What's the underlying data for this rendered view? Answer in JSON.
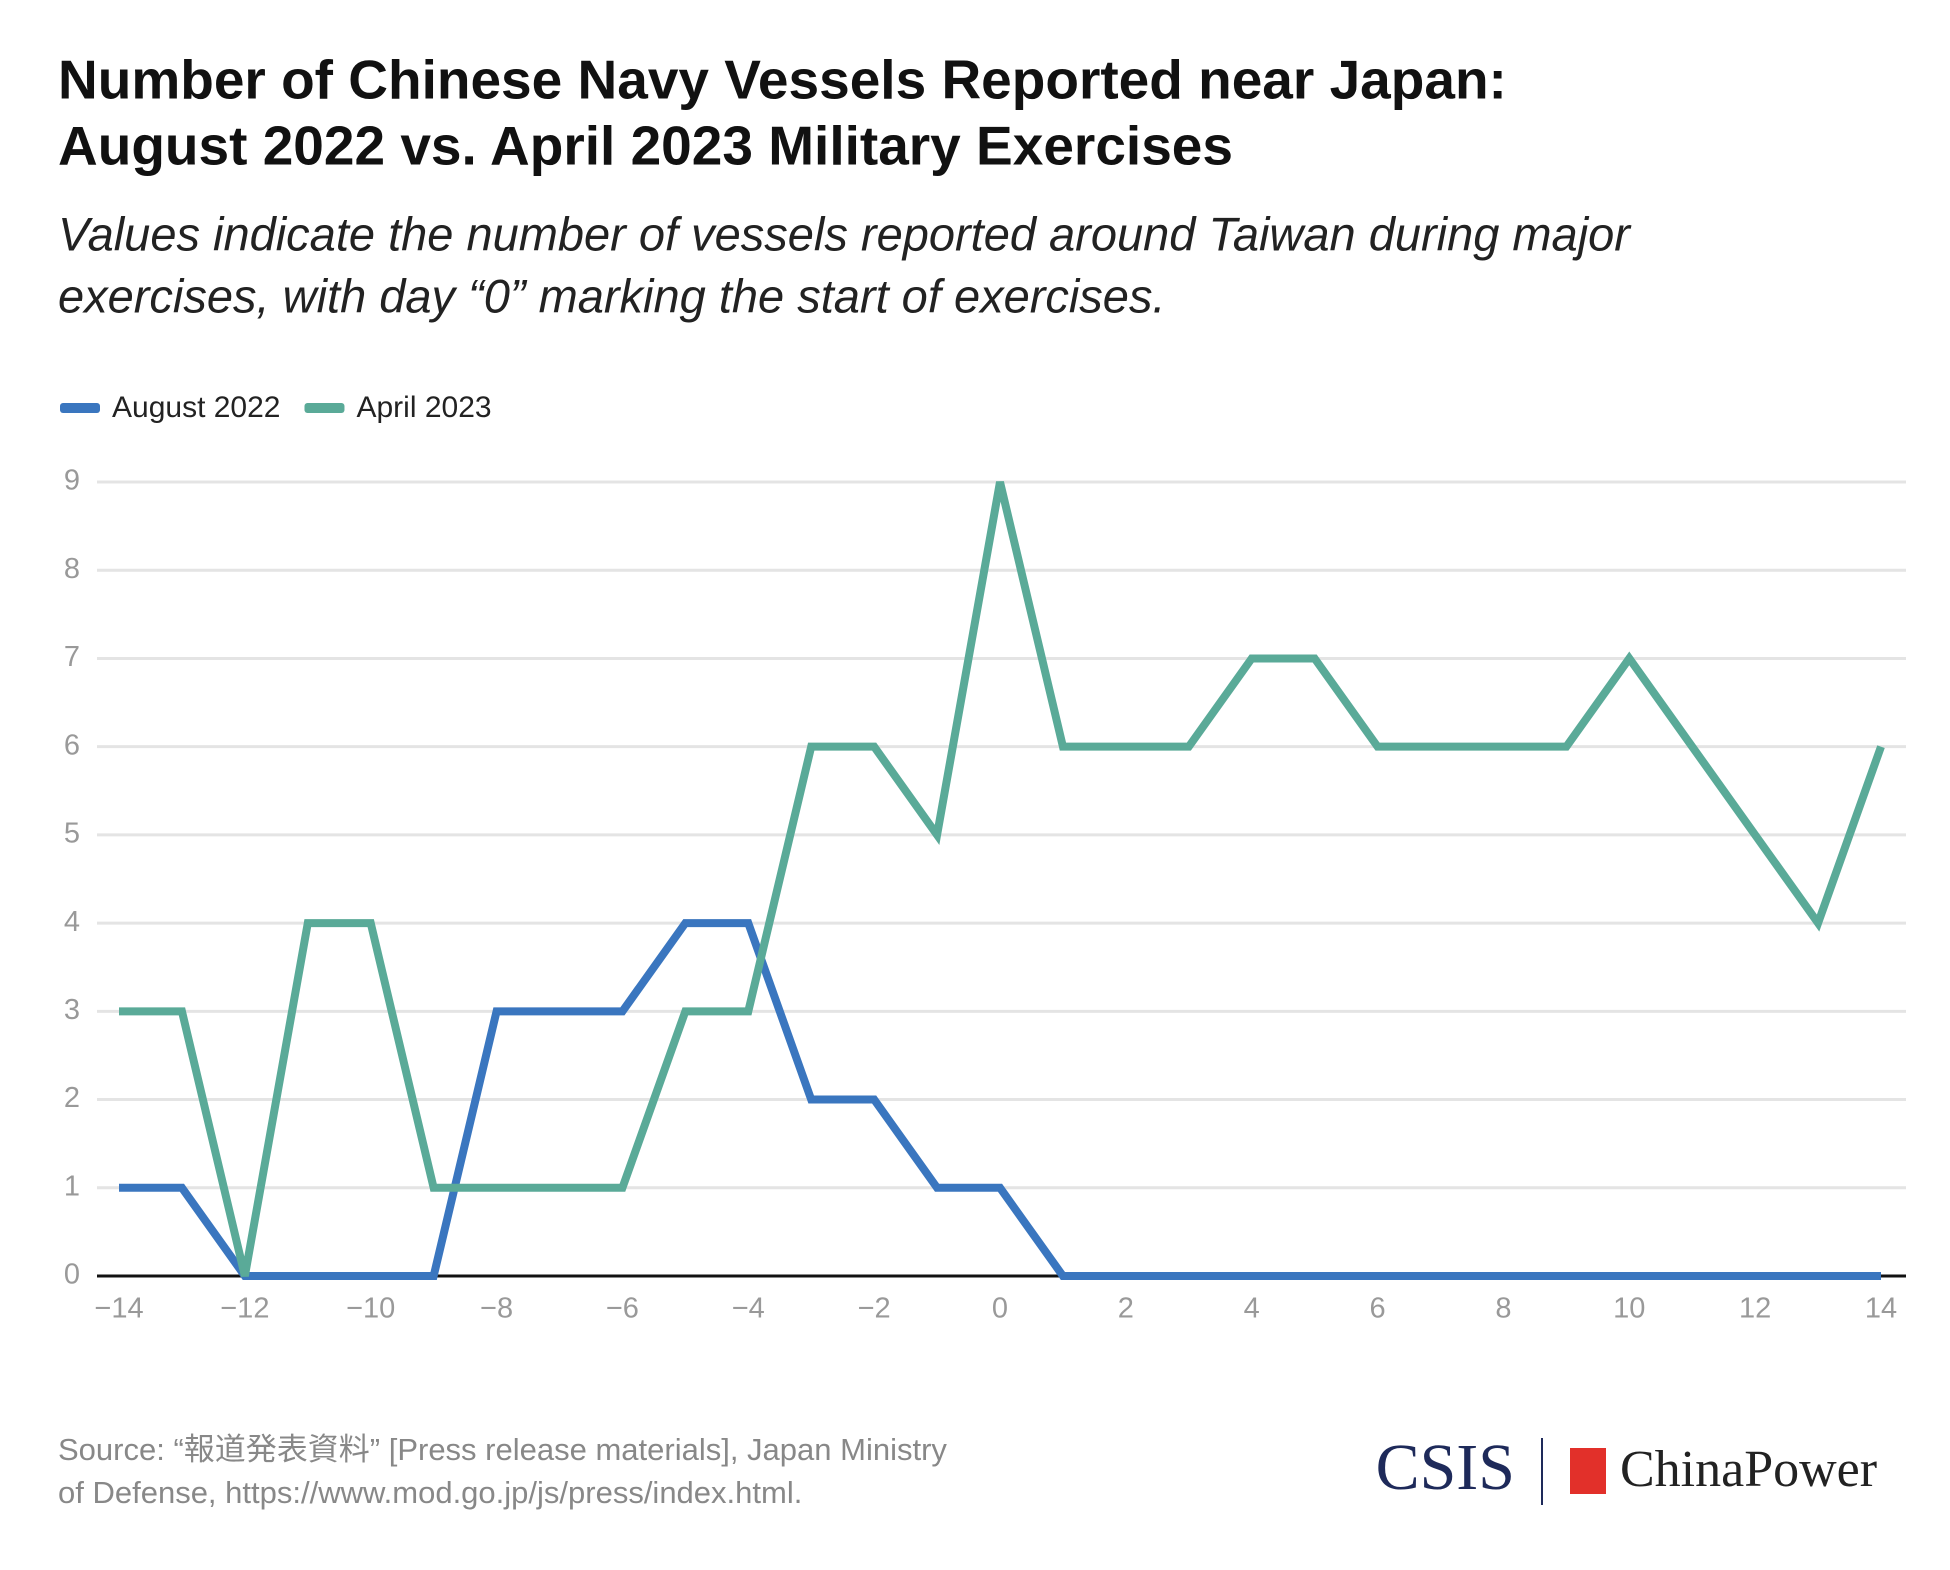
{
  "chart_data": {
    "type": "line",
    "title": [
      "Number of Chinese Navy Vessels Reported near Japan:",
      "August 2022 vs. April 2023 Military Exercises"
    ],
    "subtitle": [
      "Values indicate the number of vessels reported around Taiwan during major",
      "exercises, with day “0” marking the start of exercises."
    ],
    "x": [
      -14,
      -13,
      -12,
      -11,
      -10,
      -9,
      -8,
      -7,
      -6,
      -5,
      -4,
      -3,
      -2,
      -1,
      0,
      1,
      2,
      3,
      4,
      5,
      6,
      7,
      8,
      9,
      10,
      11,
      12,
      13,
      14
    ],
    "series": [
      {
        "name": "August 2022",
        "color": "#3a76bf",
        "values": [
          1,
          1,
          0,
          0,
          0,
          0,
          3,
          3,
          3,
          4,
          4,
          2,
          2,
          1,
          1,
          0,
          0,
          0,
          0,
          0,
          0,
          0,
          0,
          0,
          0,
          0,
          0,
          0,
          0
        ]
      },
      {
        "name": "April 2023",
        "color": "#5aaa98",
        "values": [
          3,
          3,
          0,
          4,
          4,
          1,
          1,
          1,
          1,
          3,
          3,
          6,
          6,
          5,
          9,
          6,
          6,
          6,
          7,
          7,
          6,
          6,
          6,
          6,
          7,
          6,
          5,
          4,
          6
        ]
      }
    ],
    "xlim": [
      -14,
      14
    ],
    "xticks": [
      {
        "value": -14,
        "label": "−14"
      },
      {
        "value": -12,
        "label": "−12"
      },
      {
        "value": -10,
        "label": "−10"
      },
      {
        "value": -8,
        "label": "−8"
      },
      {
        "value": -6,
        "label": "−6"
      },
      {
        "value": -4,
        "label": "−4"
      },
      {
        "value": -2,
        "label": "−2"
      },
      0,
      2,
      4,
      6,
      8,
      10,
      12,
      14
    ],
    "ylim": [
      0,
      9
    ],
    "yticks": [
      0,
      1,
      2,
      3,
      4,
      5,
      6,
      7,
      8,
      9
    ],
    "grid": true,
    "legend": "top-left",
    "source": [
      "Source: “報道発表資料” [Press release materials], Japan Ministry",
      "of Defense, https://www.mod.go.jp/js/press/index.html."
    ],
    "logos": [
      "CSIS",
      "ChinaPower"
    ]
  }
}
